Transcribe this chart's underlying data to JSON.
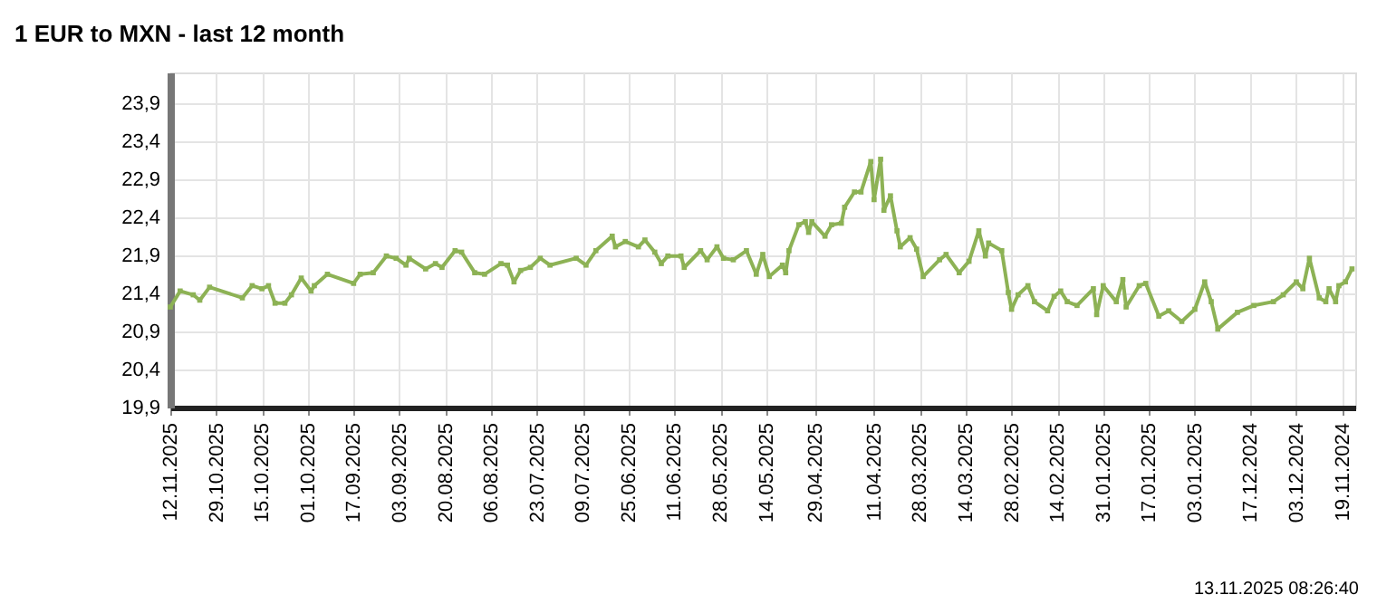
{
  "chart_data": {
    "type": "line",
    "title": "1 EUR to MXN - last 12 month",
    "x": [
      "2025-11-12",
      "2025-11-09",
      "2025-11-05",
      "2025-11-03",
      "2025-10-31",
      "2025-10-21",
      "2025-10-18",
      "2025-10-15",
      "2025-10-13",
      "2025-10-11",
      "2025-10-08",
      "2025-10-06",
      "2025-10-03",
      "2025-09-30",
      "2025-09-29",
      "2025-09-25",
      "2025-09-17",
      "2025-09-15",
      "2025-09-11",
      "2025-09-07",
      "2025-09-04",
      "2025-09-01",
      "2025-08-31",
      "2025-08-26",
      "2025-08-23",
      "2025-08-21",
      "2025-08-17",
      "2025-08-15",
      "2025-08-11",
      "2025-08-08",
      "2025-08-03",
      "2025-08-01",
      "2025-07-30",
      "2025-07-28",
      "2025-07-25",
      "2025-07-22",
      "2025-07-19",
      "2025-07-11",
      "2025-07-08",
      "2025-07-05",
      "2025-06-30",
      "2025-06-29",
      "2025-06-26",
      "2025-06-22",
      "2025-06-20",
      "2025-06-17",
      "2025-06-15",
      "2025-06-13",
      "2025-06-09",
      "2025-06-08",
      "2025-06-03",
      "2025-06-01",
      "2025-05-29",
      "2025-05-27",
      "2025-05-24",
      "2025-05-20",
      "2025-05-17",
      "2025-05-15",
      "2025-05-13",
      "2025-05-09",
      "2025-05-08",
      "2025-05-07",
      "2025-05-04",
      "2025-05-02",
      "2025-05-01",
      "2025-04-30",
      "2025-04-26",
      "2025-04-24",
      "2025-04-21",
      "2025-04-20",
      "2025-04-17",
      "2025-04-15",
      "2025-04-12",
      "2025-04-11",
      "2025-04-09",
      "2025-04-08",
      "2025-04-06",
      "2025-04-04",
      "2025-04-03",
      "2025-03-31",
      "2025-03-29",
      "2025-03-27",
      "2025-03-22",
      "2025-03-20",
      "2025-03-16",
      "2025-03-13",
      "2025-03-10",
      "2025-03-08",
      "2025-03-07",
      "2025-03-03",
      "2025-03-01",
      "2025-02-28",
      "2025-02-26",
      "2025-02-23",
      "2025-02-21",
      "2025-02-17",
      "2025-02-15",
      "2025-02-13",
      "2025-02-11",
      "2025-02-08",
      "2025-02-03",
      "2025-02-02",
      "2025-01-31",
      "2025-01-27",
      "2025-01-25",
      "2025-01-24",
      "2025-01-20",
      "2025-01-18",
      "2025-01-14",
      "2025-01-11",
      "2025-01-07",
      "2025-01-03",
      "2024-12-31",
      "2024-12-29",
      "2024-12-27",
      "2024-12-21",
      "2024-12-16",
      "2024-12-10",
      "2024-12-07",
      "2024-12-03",
      "2024-12-01",
      "2024-11-29",
      "2024-11-26",
      "2024-11-24",
      "2024-11-23",
      "2024-11-21",
      "2024-11-20",
      "2024-11-18",
      "2024-11-16"
    ],
    "series": [
      {
        "color": "#8db255",
        "values": [
          21.22,
          21.43,
          21.38,
          21.31,
          21.48,
          21.34,
          21.5,
          21.46,
          21.5,
          21.27,
          21.27,
          21.38,
          21.6,
          21.43,
          21.5,
          21.65,
          21.53,
          21.65,
          21.67,
          21.89,
          21.86,
          21.77,
          21.86,
          21.72,
          21.79,
          21.74,
          21.96,
          21.94,
          21.67,
          21.65,
          21.79,
          21.77,
          21.55,
          21.7,
          21.74,
          21.86,
          21.77,
          21.86,
          21.77,
          21.96,
          22.15,
          22.01,
          22.08,
          22.01,
          22.1,
          21.94,
          21.79,
          21.89,
          21.89,
          21.74,
          21.96,
          21.84,
          22.01,
          21.86,
          21.84,
          21.96,
          21.65,
          21.91,
          21.62,
          21.77,
          21.67,
          21.96,
          22.3,
          22.34,
          22.2,
          22.34,
          22.15,
          22.3,
          22.32,
          22.53,
          22.73,
          22.73,
          23.13,
          22.63,
          23.16,
          22.49,
          22.68,
          22.22,
          22.01,
          22.13,
          21.98,
          21.62,
          21.84,
          21.91,
          21.67,
          21.82,
          22.22,
          21.89,
          22.06,
          21.96,
          21.41,
          21.19,
          21.38,
          21.5,
          21.29,
          21.17,
          21.36,
          21.43,
          21.29,
          21.24,
          21.46,
          21.12,
          21.5,
          21.29,
          21.58,
          21.22,
          21.5,
          21.53,
          21.1,
          21.17,
          21.03,
          21.19,
          21.55,
          21.29,
          20.93,
          21.15,
          21.24,
          21.29,
          21.38,
          21.55,
          21.46,
          21.86,
          21.34,
          21.29,
          21.46,
          21.29,
          21.5,
          21.55,
          21.72
        ]
      }
    ],
    "xlim": [
      "2025-11-12",
      "2024-11-15"
    ],
    "xticks": [
      {
        "value": "2025-11-12",
        "label": "12.11.2025"
      },
      {
        "value": "2025-10-29",
        "label": "29.10.2025"
      },
      {
        "value": "2025-10-15",
        "label": "15.10.2025"
      },
      {
        "value": "2025-10-01",
        "label": "01.10.2025"
      },
      {
        "value": "2025-09-17",
        "label": "17.09.2025"
      },
      {
        "value": "2025-09-03",
        "label": "03.09.2025"
      },
      {
        "value": "2025-08-20",
        "label": "20.08.2025"
      },
      {
        "value": "2025-08-06",
        "label": "06.08.2025"
      },
      {
        "value": "2025-07-23",
        "label": "23.07.2025"
      },
      {
        "value": "2025-07-09",
        "label": "09.07.2025"
      },
      {
        "value": "2025-06-25",
        "label": "25.06.2025"
      },
      {
        "value": "2025-06-11",
        "label": "11.06.2025"
      },
      {
        "value": "2025-05-28",
        "label": "28.05.2025"
      },
      {
        "value": "2025-05-14",
        "label": "14.05.2025"
      },
      {
        "value": "2025-04-29",
        "label": "29.04.2025"
      },
      {
        "value": "2025-04-11",
        "label": "11.04.2025"
      },
      {
        "value": "2025-03-28",
        "label": "28.03.2025"
      },
      {
        "value": "2025-03-14",
        "label": "14.03.2025"
      },
      {
        "value": "2025-02-28",
        "label": "28.02.2025"
      },
      {
        "value": "2025-02-14",
        "label": "14.02.2025"
      },
      {
        "value": "2025-01-31",
        "label": "31.01.2025"
      },
      {
        "value": "2025-01-17",
        "label": "17.01.2025"
      },
      {
        "value": "2025-01-03",
        "label": "03.01.2025"
      },
      {
        "value": "2024-12-17",
        "label": "17.12.2024"
      },
      {
        "value": "2024-12-03",
        "label": "03.12.2024"
      },
      {
        "value": "2024-11-19",
        "label": "19.11.2024"
      }
    ],
    "ylim": [
      19.9,
      24.3
    ],
    "yticks": [
      {
        "value": 19.9,
        "label": "19,9"
      },
      {
        "value": 20.4,
        "label": "20,4"
      },
      {
        "value": 20.9,
        "label": "20,9"
      },
      {
        "value": 21.4,
        "label": "21,4"
      },
      {
        "value": 21.9,
        "label": "21,9"
      },
      {
        "value": 22.4,
        "label": "22,4"
      },
      {
        "value": 22.9,
        "label": "22,9"
      },
      {
        "value": 23.4,
        "label": "23,4"
      },
      {
        "value": 23.9,
        "label": "23,9"
      }
    ],
    "grid": true,
    "marker": "square",
    "line_style": "solid",
    "annotations": [
      "13.11.2025 08:26:40"
    ]
  }
}
